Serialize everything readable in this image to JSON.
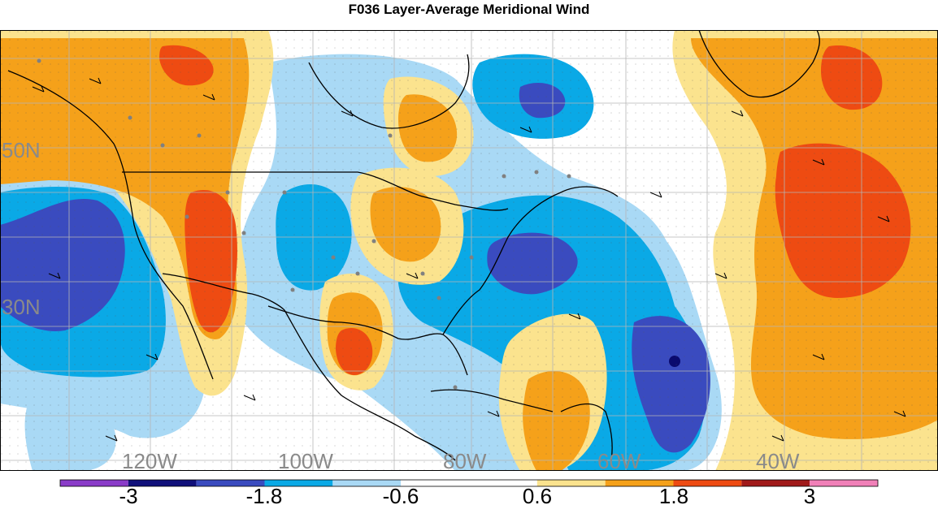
{
  "title": "F036 Layer-Average Meridional Wind",
  "map": {
    "lat_labels": [
      "50N",
      "30N"
    ],
    "lon_labels": [
      "120W",
      "100W",
      "80W",
      "60W",
      "40W"
    ],
    "colors": {
      "strong_neg": "#3a4bbf",
      "mid_neg": "#0aa9e6",
      "weak_neg": "#a9d9f5",
      "weak_pos": "#fbe38e",
      "mid_pos": "#f5a11a",
      "strong_pos": "#ee4b12",
      "extreme_neg": "#0a0a6e",
      "coast": "#000000",
      "grid": "#b5b5b5",
      "station": "#808080"
    }
  },
  "colorbar": {
    "labels": [
      "-3",
      "-1.8",
      "-0.6",
      "0.6",
      "1.8",
      "3"
    ],
    "colors": [
      "#8a3cc8",
      "#10107a",
      "#3a4bbf",
      "#0aa9e6",
      "#a9d9f5",
      "#ffffff",
      "#ffffff",
      "#fbe38e",
      "#f5a11a",
      "#ee4b12",
      "#a01a1a",
      "#f080b8"
    ]
  }
}
